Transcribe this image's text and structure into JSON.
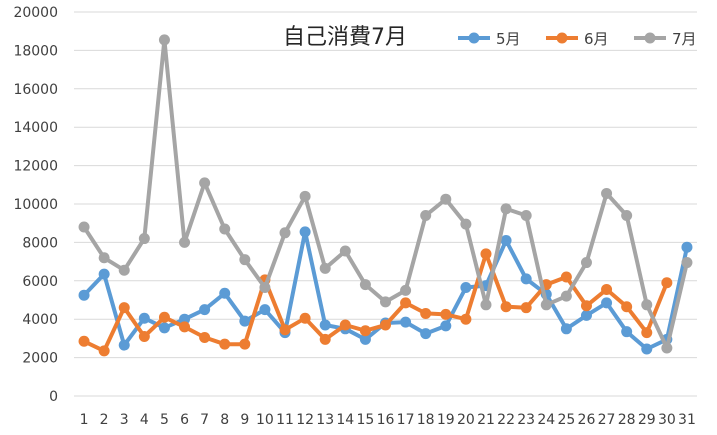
{
  "chart_data": {
    "type": "line",
    "title": "自己消費7月",
    "xlabel": "",
    "ylabel": "",
    "categories": [
      "1",
      "2",
      "3",
      "4",
      "5",
      "6",
      "7",
      "8",
      "9",
      "10",
      "11",
      "12",
      "13",
      "14",
      "15",
      "16",
      "17",
      "18",
      "19",
      "20",
      "21",
      "22",
      "23",
      "24",
      "25",
      "26",
      "27",
      "28",
      "29",
      "30",
      "31"
    ],
    "ylim": [
      0,
      20000
    ],
    "yticks": [
      0,
      2000,
      4000,
      6000,
      8000,
      10000,
      12000,
      14000,
      16000,
      18000,
      20000
    ],
    "ytick_labels": [
      "0",
      "2000",
      "4000",
      "6000",
      "8000",
      "10000",
      "12000",
      "14000",
      "16000",
      "18000",
      "20000"
    ],
    "grid": true,
    "legend_position": "top-right",
    "series": [
      {
        "name": "5月",
        "color": "#5b9bd5",
        "values": [
          5250,
          6350,
          2650,
          4050,
          3550,
          4000,
          4500,
          5350,
          3900,
          4500,
          3300,
          8550,
          3700,
          3500,
          2950,
          3800,
          3850,
          3250,
          3650,
          5650,
          5750,
          8100,
          6100,
          5300,
          3500,
          4200,
          4850,
          3350,
          2450,
          2950,
          7750
        ]
      },
      {
        "name": "6月",
        "color": "#ed7d31",
        "values": [
          2850,
          2350,
          4600,
          3100,
          4100,
          3600,
          3050,
          2700,
          2700,
          6050,
          3450,
          4050,
          2950,
          3700,
          3400,
          3700,
          4850,
          4300,
          4250,
          4000,
          7400,
          4650,
          4600,
          5800,
          6200,
          4700,
          5550,
          4650,
          3300,
          5900,
          null
        ]
      },
      {
        "name": "7月",
        "color": "#a5a5a5",
        "values": [
          8800,
          7200,
          6550,
          8200,
          18550,
          8000,
          11100,
          8700,
          7100,
          5650,
          8500,
          10400,
          6650,
          7550,
          5800,
          4900,
          5500,
          9400,
          10250,
          8950,
          4750,
          9750,
          9400,
          4750,
          5200,
          6950,
          10550,
          9400,
          4750,
          2500,
          6950
        ]
      }
    ]
  }
}
